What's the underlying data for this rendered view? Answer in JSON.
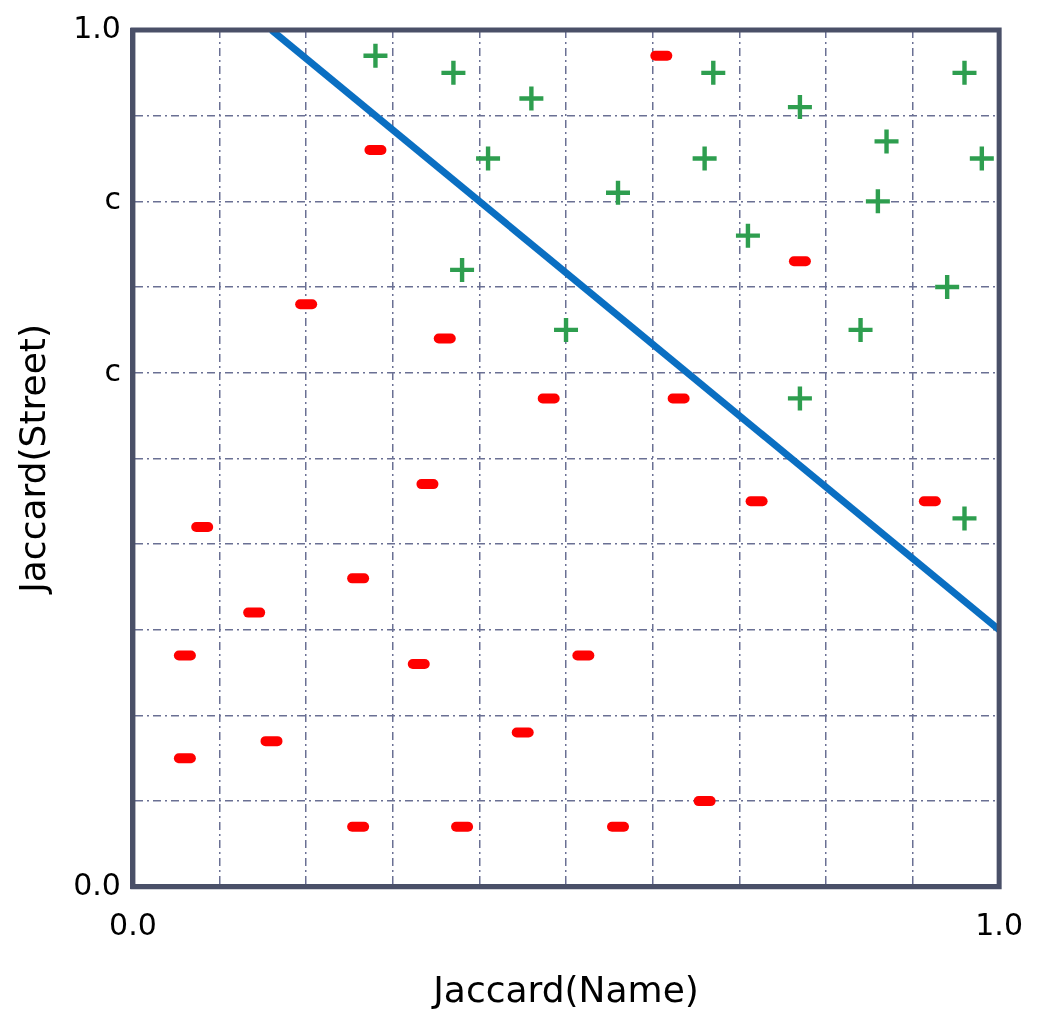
{
  "chart_data": {
    "type": "scatter",
    "xlabel": "Jaccard(Name)",
    "ylabel": "Jaccard(Street)",
    "xlim": [
      0,
      1
    ],
    "ylim": [
      0,
      1
    ],
    "xticks": [
      {
        "value": 0,
        "label": "0.0"
      },
      {
        "value": 0.1,
        "label": null
      },
      {
        "value": 0.2,
        "label": null
      },
      {
        "value": 0.3,
        "label": null
      },
      {
        "value": 0.4,
        "label": null
      },
      {
        "value": 0.5,
        "label": null
      },
      {
        "value": 0.6,
        "label": null
      },
      {
        "value": 0.7,
        "label": null
      },
      {
        "value": 0.8,
        "label": null
      },
      {
        "value": 0.9,
        "label": null
      },
      {
        "value": 1,
        "label": "1.0"
      }
    ],
    "yticks": [
      {
        "value": 0,
        "label": "0.0"
      },
      {
        "value": 0.1,
        "label": null
      },
      {
        "value": 0.2,
        "label": null
      },
      {
        "value": 0.3,
        "label": null
      },
      {
        "value": 0.4,
        "label": null
      },
      {
        "value": 0.5,
        "label": null
      },
      {
        "value": 0.6,
        "label": "c"
      },
      {
        "value": 0.7,
        "label": null
      },
      {
        "value": 0.8,
        "label": "c"
      },
      {
        "value": 0.9,
        "label": null
      },
      {
        "value": 1,
        "label": "1.0"
      }
    ],
    "grid": true,
    "legend": false,
    "series": [
      {
        "color": "#ff0000",
        "x": [
          0.61,
          0.28,
          0.2,
          0.36,
          0.48,
          0.63,
          0.77,
          0.34,
          0.08,
          0.72,
          0.92,
          0.26,
          0.14,
          0.06,
          0.33,
          0.52,
          0.16,
          0.06,
          0.45,
          0.66,
          0.26,
          0.38,
          0.56
        ],
        "values": [
          0.97,
          0.86,
          0.68,
          0.64,
          0.57,
          0.57,
          0.73,
          0.47,
          0.42,
          0.45,
          0.45,
          0.36,
          0.32,
          0.27,
          0.26,
          0.27,
          0.17,
          0.15,
          0.18,
          0.1,
          0.07,
          0.07,
          0.07
        ]
      },
      {
        "marker": "cross",
        "color": "#2e9e4f",
        "x": [
          0.28,
          0.37,
          0.46,
          0.67,
          0.96,
          0.77,
          0.41,
          0.66,
          0.87,
          0.98,
          0.56,
          0.86,
          0.71,
          0.38,
          0.94,
          0.5,
          0.84,
          0.77,
          0.96
        ],
        "values": [
          0.97,
          0.95,
          0.92,
          0.95,
          0.95,
          0.91,
          0.85,
          0.85,
          0.87,
          0.85,
          0.81,
          0.8,
          0.76,
          0.72,
          0.7,
          0.65,
          0.65,
          0.57,
          0.43
        ]
      },
      {
        "type": "line",
        "marker": "none",
        "color": "#0a6fc2",
        "x": [
          0.16,
          1
        ],
        "values": [
          1,
          0.3
        ]
      }
    ]
  }
}
